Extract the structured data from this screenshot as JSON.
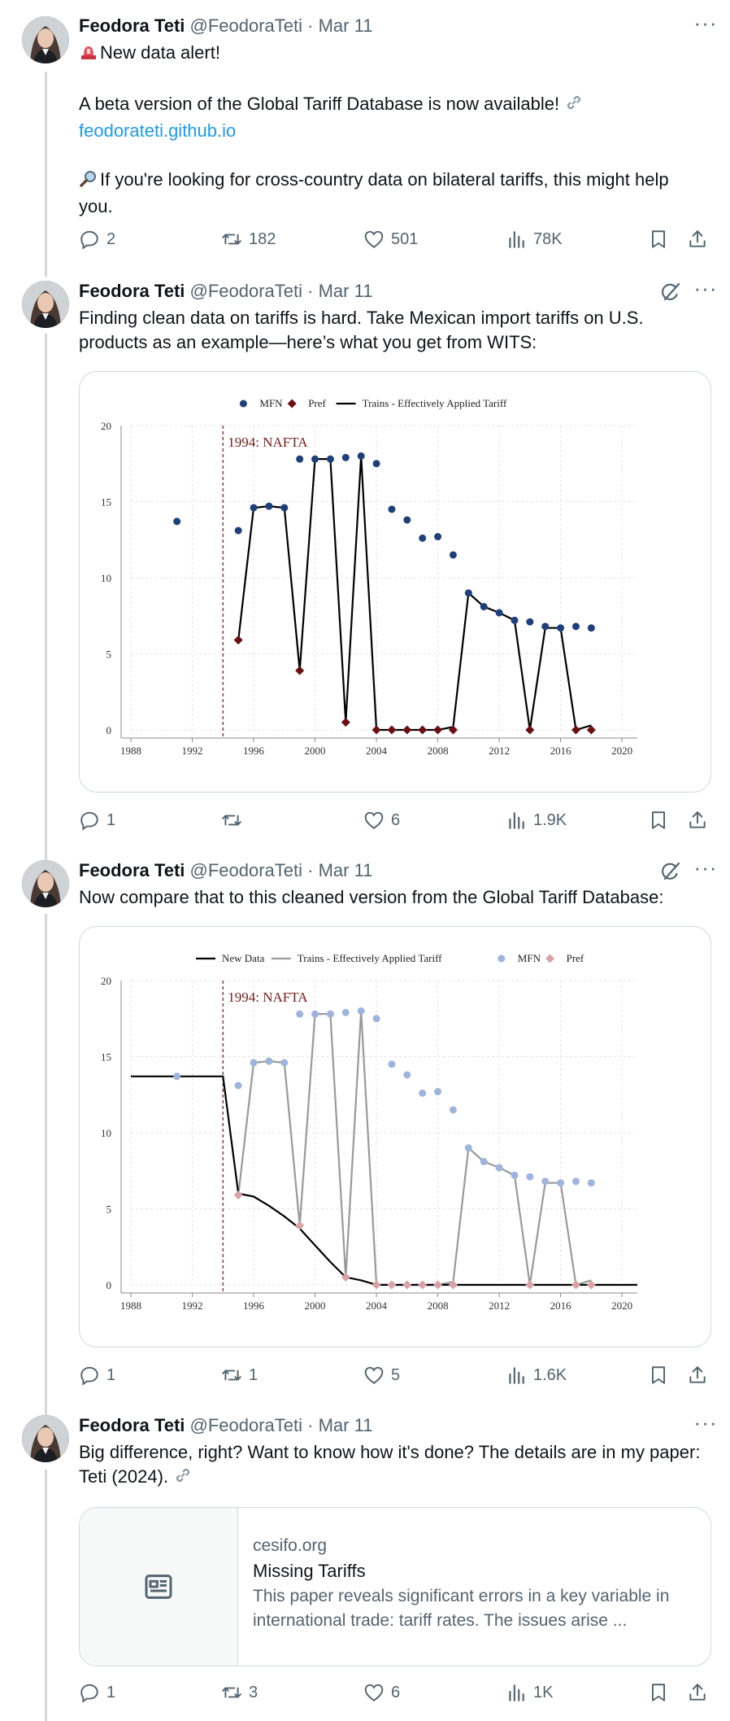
{
  "colors": {
    "accent": "#1d9bf0",
    "muted": "#536471",
    "text": "#0f1419",
    "border": "#cfd9de"
  },
  "tweets": [
    {
      "author": "Feodora Teti",
      "handle": "@FeodoraTeti",
      "sep": "·",
      "date": "Mar 11",
      "more": "···",
      "lines": [
        "New data alert!",
        "A beta version of the Global Tariff Database is now available!",
        "feodorateti.github.io",
        "If you're looking for cross-country data on bilateral tariffs, this might help you."
      ],
      "stats": {
        "replies": "2",
        "reposts": "182",
        "likes": "501",
        "views": "78K"
      }
    },
    {
      "author": "Feodora Teti",
      "handle": "@FeodoraTeti",
      "sep": "·",
      "date": "Mar 11",
      "more": "···",
      "text": "Finding clean data on tariffs is hard. Take Mexican import tariffs on U.S. products as an example—here’s what you get from WITS:",
      "stats": {
        "replies": "1",
        "reposts": "",
        "likes": "6",
        "views": "1.9K"
      }
    },
    {
      "author": "Feodora Teti",
      "handle": "@FeodoraTeti",
      "sep": "·",
      "date": "Mar 11",
      "more": "···",
      "text": "Now compare that to this cleaned version from the Global Tariff Database:",
      "stats": {
        "replies": "1",
        "reposts": "1",
        "likes": "5",
        "views": "1.6K"
      }
    },
    {
      "author": "Feodora Teti",
      "handle": "@FeodoraTeti",
      "sep": "·",
      "date": "Mar 11",
      "more": "···",
      "text": "Big difference, right? Want to know how it's done? The details are in my paper: Teti (2024).",
      "card": {
        "domain": "cesifo.org",
        "title": "Missing Tariffs",
        "description": "This paper reveals significant errors in a key variable in international trade: tariff rates. The issues arise ..."
      },
      "stats": {
        "replies": "1",
        "reposts": "3",
        "likes": "6",
        "views": "1K"
      }
    }
  ],
  "chart_data": [
    {
      "type": "line",
      "title": "",
      "xlim": [
        1988,
        2021
      ],
      "ylim": [
        0,
        20
      ],
      "xticks": [
        1988,
        1992,
        1996,
        2000,
        2004,
        2008,
        2012,
        2016,
        2020
      ],
      "yticks": [
        0,
        5,
        10,
        15,
        20
      ],
      "legend": [
        "MFN",
        "Pref",
        "Trains - Effectively Applied Tariff"
      ],
      "annotation": {
        "x": 1994,
        "label": "1994: NAFTA"
      },
      "series": [
        {
          "name": "MFN",
          "kind": "scatter",
          "color": "#1f3f7a",
          "points": [
            [
              1991,
              13.7
            ],
            [
              1995,
              13.1
            ],
            [
              1996,
              14.6
            ],
            [
              1997,
              14.7
            ],
            [
              1998,
              14.6
            ],
            [
              1999,
              17.8
            ],
            [
              2000,
              17.8
            ],
            [
              2001,
              17.8
            ],
            [
              2002,
              17.9
            ],
            [
              2003,
              18.0
            ],
            [
              2004,
              17.5
            ],
            [
              2005,
              14.5
            ],
            [
              2006,
              13.8
            ],
            [
              2007,
              12.6
            ],
            [
              2008,
              12.7
            ],
            [
              2009,
              11.5
            ],
            [
              2010,
              9.0
            ],
            [
              2011,
              8.1
            ],
            [
              2012,
              7.7
            ],
            [
              2013,
              7.2
            ],
            [
              2014,
              7.1
            ],
            [
              2015,
              6.8
            ],
            [
              2016,
              6.7
            ],
            [
              2017,
              6.8
            ],
            [
              2018,
              6.7
            ]
          ]
        },
        {
          "name": "Pref",
          "kind": "diamond",
          "color": "#6b0f12",
          "points": [
            [
              1995,
              5.9
            ],
            [
              1999,
              3.9
            ],
            [
              2002,
              0.5
            ],
            [
              2004,
              0
            ],
            [
              2005,
              0
            ],
            [
              2006,
              0
            ],
            [
              2007,
              0
            ],
            [
              2008,
              0
            ],
            [
              2009,
              0
            ],
            [
              2014,
              0
            ],
            [
              2017,
              0
            ],
            [
              2018,
              0
            ]
          ]
        },
        {
          "name": "Trains - Effectively Applied Tariff",
          "kind": "line",
          "color": "#000000",
          "points": [
            [
              1995,
              5.9
            ],
            [
              1996,
              14.6
            ],
            [
              1997,
              14.7
            ],
            [
              1998,
              14.6
            ],
            [
              1999,
              3.9
            ],
            [
              2000,
              17.8
            ],
            [
              2001,
              17.8
            ],
            [
              2002,
              0.5
            ],
            [
              2003,
              18.0
            ],
            [
              2004,
              0
            ],
            [
              2005,
              0
            ],
            [
              2006,
              0
            ],
            [
              2007,
              0
            ],
            [
              2008,
              0
            ],
            [
              2009,
              0.2
            ],
            [
              2010,
              9.0
            ],
            [
              2011,
              8.1
            ],
            [
              2012,
              7.7
            ],
            [
              2013,
              7.2
            ],
            [
              2014,
              0
            ],
            [
              2015,
              6.7
            ],
            [
              2016,
              6.7
            ],
            [
              2017,
              0
            ],
            [
              2018,
              0.3
            ]
          ]
        }
      ]
    },
    {
      "type": "line",
      "title": "",
      "xlim": [
        1988,
        2021
      ],
      "ylim": [
        0,
        20
      ],
      "xticks": [
        1988,
        1992,
        1996,
        2000,
        2004,
        2008,
        2012,
        2016,
        2020
      ],
      "yticks": [
        0,
        5,
        10,
        15,
        20
      ],
      "legend": [
        "New Data",
        "Trains - Effectively Applied Tariff",
        "MFN",
        "Pref"
      ],
      "annotation": {
        "x": 1994,
        "label": "1994: NAFTA"
      },
      "series": [
        {
          "name": "MFN",
          "kind": "scatter",
          "color": "#9fb4dc",
          "points": [
            [
              1991,
              13.7
            ],
            [
              1995,
              13.1
            ],
            [
              1996,
              14.6
            ],
            [
              1997,
              14.7
            ],
            [
              1998,
              14.6
            ],
            [
              1999,
              17.8
            ],
            [
              2000,
              17.8
            ],
            [
              2001,
              17.8
            ],
            [
              2002,
              17.9
            ],
            [
              2003,
              18.0
            ],
            [
              2004,
              17.5
            ],
            [
              2005,
              14.5
            ],
            [
              2006,
              13.8
            ],
            [
              2007,
              12.6
            ],
            [
              2008,
              12.7
            ],
            [
              2009,
              11.5
            ],
            [
              2010,
              9.0
            ],
            [
              2011,
              8.1
            ],
            [
              2012,
              7.7
            ],
            [
              2013,
              7.2
            ],
            [
              2014,
              7.1
            ],
            [
              2015,
              6.8
            ],
            [
              2016,
              6.7
            ],
            [
              2017,
              6.8
            ],
            [
              2018,
              6.7
            ]
          ]
        },
        {
          "name": "Pref",
          "kind": "diamond",
          "color": "#d9a3a6",
          "points": [
            [
              1995,
              5.9
            ],
            [
              1999,
              3.9
            ],
            [
              2002,
              0.5
            ],
            [
              2004,
              0
            ],
            [
              2005,
              0
            ],
            [
              2006,
              0
            ],
            [
              2007,
              0
            ],
            [
              2008,
              0
            ],
            [
              2009,
              0
            ],
            [
              2014,
              0
            ],
            [
              2017,
              0
            ],
            [
              2018,
              0
            ]
          ]
        },
        {
          "name": "Trains - Effectively Applied Tariff",
          "kind": "line",
          "color": "#999999",
          "points": [
            [
              1995,
              5.9
            ],
            [
              1996,
              14.6
            ],
            [
              1997,
              14.7
            ],
            [
              1998,
              14.6
            ],
            [
              1999,
              3.9
            ],
            [
              2000,
              17.8
            ],
            [
              2001,
              17.8
            ],
            [
              2002,
              0.5
            ],
            [
              2003,
              18.0
            ],
            [
              2004,
              0
            ],
            [
              2005,
              0
            ],
            [
              2006,
              0
            ],
            [
              2007,
              0
            ],
            [
              2008,
              0
            ],
            [
              2009,
              0.2
            ],
            [
              2010,
              9.0
            ],
            [
              2011,
              8.1
            ],
            [
              2012,
              7.7
            ],
            [
              2013,
              7.2
            ],
            [
              2014,
              0
            ],
            [
              2015,
              6.7
            ],
            [
              2016,
              6.7
            ],
            [
              2017,
              0
            ],
            [
              2018,
              0.3
            ]
          ]
        },
        {
          "name": "New Data",
          "kind": "line",
          "color": "#000000",
          "points": [
            [
              1988,
              13.7
            ],
            [
              1994,
              13.7
            ],
            [
              1995,
              6.0
            ],
            [
              1996,
              5.8
            ],
            [
              1997,
              5.2
            ],
            [
              1998,
              4.5
            ],
            [
              1999,
              3.7
            ],
            [
              2000,
              2.6
            ],
            [
              2001,
              1.5
            ],
            [
              2002,
              0.5
            ],
            [
              2003,
              0.3
            ],
            [
              2004,
              0
            ],
            [
              2021,
              0
            ]
          ]
        }
      ]
    }
  ]
}
